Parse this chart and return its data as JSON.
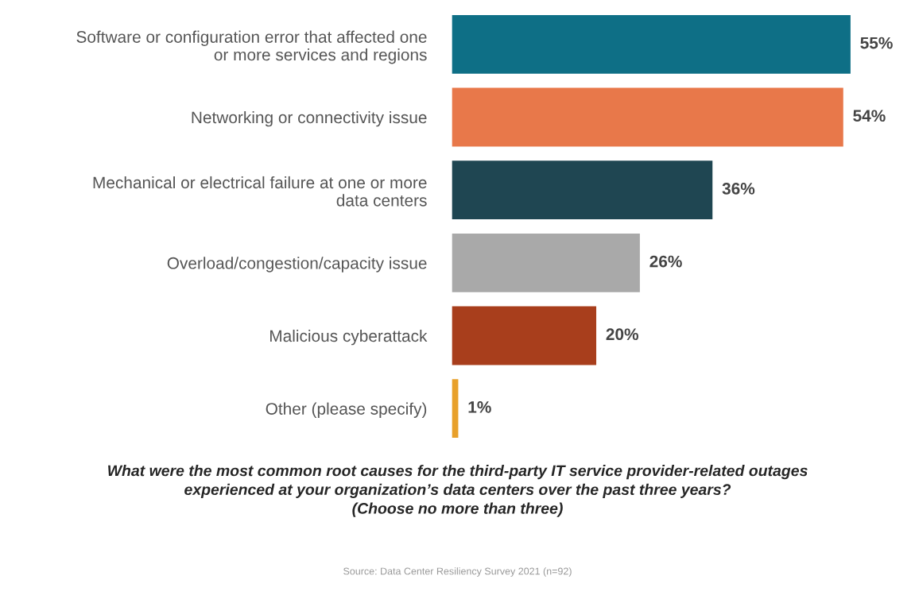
{
  "chart_data": {
    "type": "bar",
    "orientation": "horizontal",
    "title": "What were the most common root causes for the third-party IT service provider-related outages\nexperienced at your organization’s data centers over the past three years?\n(Choose no more than three)",
    "categories": [
      "Software or configuration error that affected one\nor more services and regions",
      "Networking or connectivity issue",
      "Mechanical or electrical failure at one or more\ndata centers",
      "Overload/congestion/capacity issue",
      "Malicious cyberattack",
      "Other (please specify)"
    ],
    "values": [
      55,
      54,
      36,
      26,
      20,
      1
    ],
    "colors": [
      "#0e6f86",
      "#e8784a",
      "#1f4652",
      "#a9a9a9",
      "#a83e1c",
      "#e8a02a"
    ],
    "value_labels": [
      "55%",
      "54%",
      "36%",
      "26%",
      "20%",
      "1%"
    ],
    "tick_labels": "y",
    "grid": false,
    "annotations": [
      "Source: Data Center Resiliency Survey 2021 (n=92)"
    ]
  }
}
